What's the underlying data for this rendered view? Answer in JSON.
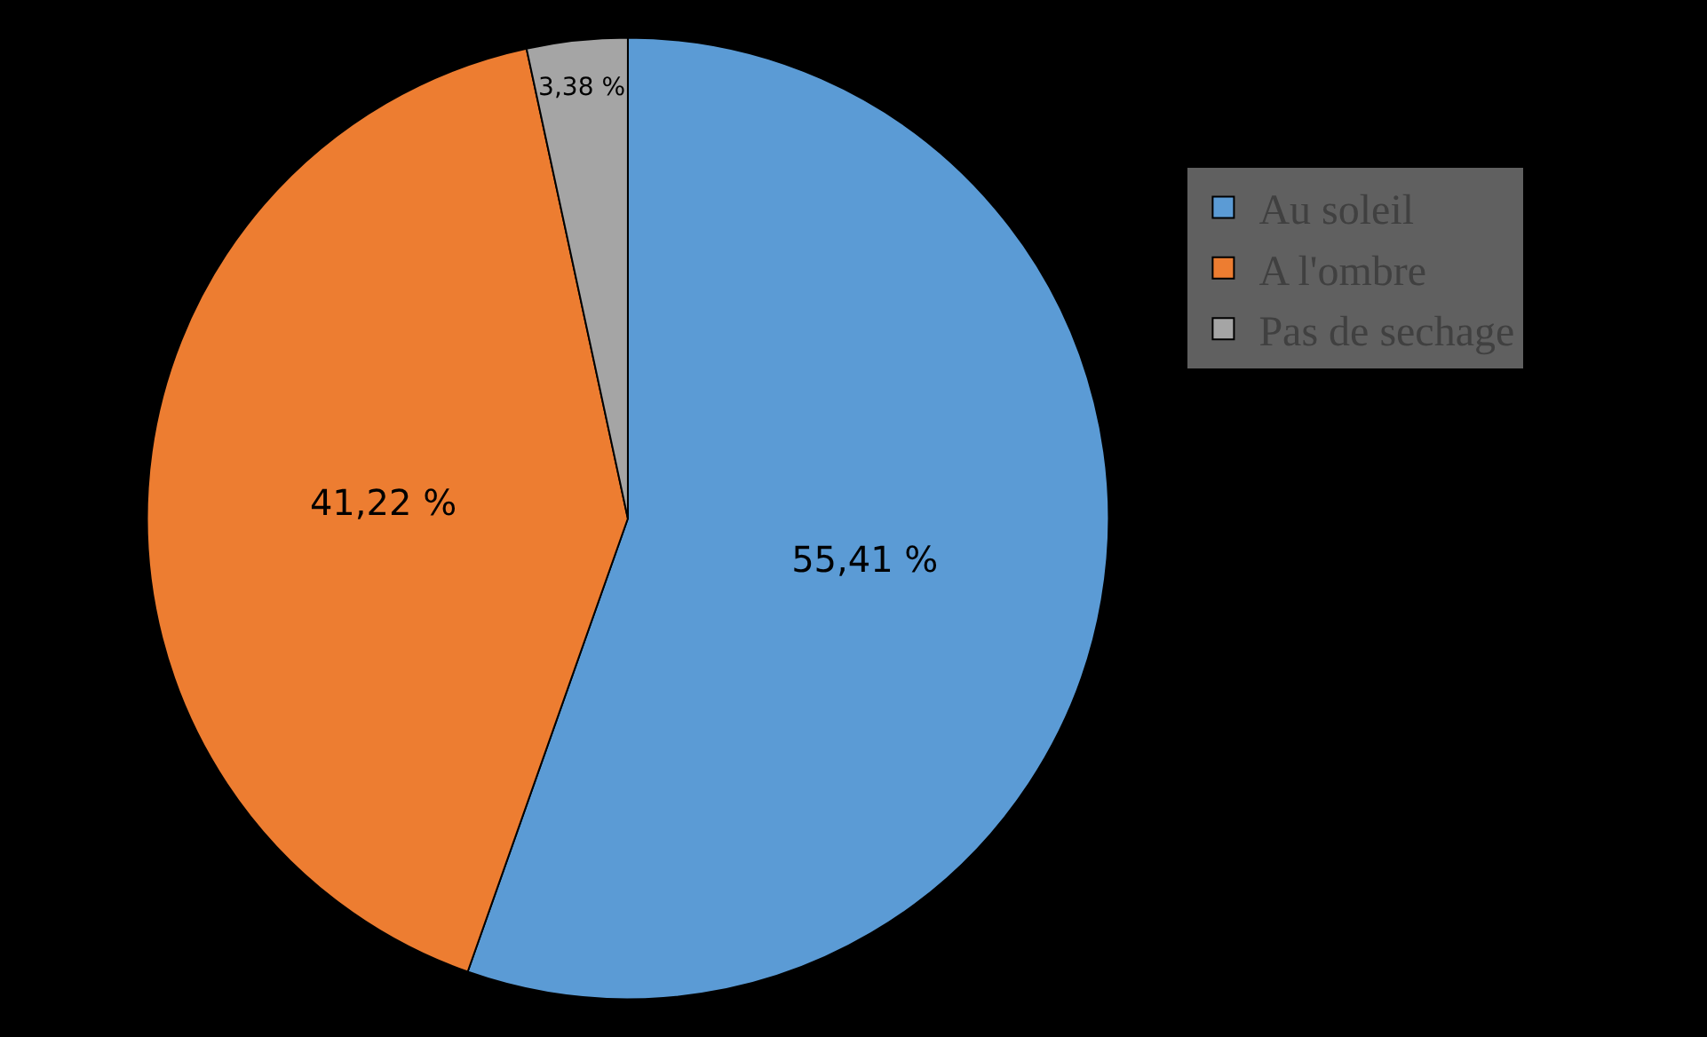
{
  "chart_data": {
    "type": "pie",
    "categories": [
      "Au soleil",
      "A l'ombre",
      "Pas de sechage"
    ],
    "values": [
      55.41,
      41.22,
      3.38
    ],
    "colors": [
      "#5b9bd5",
      "#ed7d31",
      "#a5a5a5"
    ],
    "value_labels": [
      "55,41 %",
      "41,22 %",
      "3,38 %"
    ],
    "legend": "right"
  }
}
